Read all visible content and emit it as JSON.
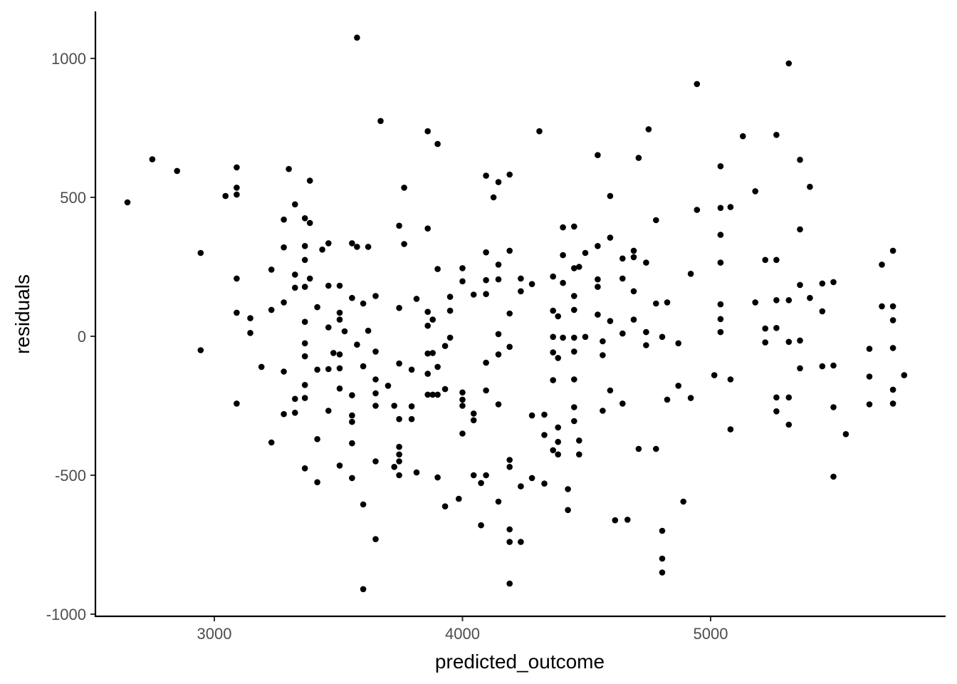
{
  "chart_data": {
    "type": "scatter",
    "title": "",
    "xlabel": "predicted_outcome",
    "ylabel": "residuals",
    "xlim": [
      2520,
      5850
    ],
    "ylim": [
      -1010,
      1170
    ],
    "x_ticks": [
      3000,
      4000,
      5000
    ],
    "x_tick_labels": [
      "3000",
      "4000",
      "5000"
    ],
    "y_ticks": [
      1000,
      500,
      0,
      -500,
      -1000
    ],
    "y_tick_labels": [
      "1000",
      "500",
      "0",
      "-500",
      "-1000"
    ],
    "grid": false,
    "point_color": "#000000",
    "points": [
      [
        2650,
        482
      ],
      [
        2750,
        637
      ],
      [
        2850,
        595
      ],
      [
        2945,
        300
      ],
      [
        2945,
        -50
      ],
      [
        3045,
        505
      ],
      [
        3090,
        608
      ],
      [
        3090,
        535
      ],
      [
        3090,
        510
      ],
      [
        3090,
        208
      ],
      [
        3090,
        85
      ],
      [
        3090,
        -242
      ],
      [
        3145,
        65
      ],
      [
        3145,
        12
      ],
      [
        3190,
        -110
      ],
      [
        3230,
        240
      ],
      [
        3230,
        95
      ],
      [
        3230,
        -382
      ],
      [
        3280,
        420
      ],
      [
        3280,
        320
      ],
      [
        3280,
        122
      ],
      [
        3280,
        -127
      ],
      [
        3280,
        -280
      ],
      [
        3300,
        602
      ],
      [
        3325,
        475
      ],
      [
        3325,
        222
      ],
      [
        3325,
        175
      ],
      [
        3325,
        -225
      ],
      [
        3325,
        -275
      ],
      [
        3365,
        425
      ],
      [
        3365,
        325
      ],
      [
        3365,
        275
      ],
      [
        3365,
        178
      ],
      [
        3365,
        52
      ],
      [
        3365,
        -25
      ],
      [
        3365,
        -72
      ],
      [
        3365,
        -175
      ],
      [
        3365,
        -222
      ],
      [
        3365,
        -475
      ],
      [
        3385,
        408
      ],
      [
        3385,
        560
      ],
      [
        3385,
        208
      ],
      [
        3415,
        105
      ],
      [
        3415,
        -120
      ],
      [
        3415,
        -370
      ],
      [
        3415,
        -525
      ],
      [
        3435,
        312
      ],
      [
        3460,
        335
      ],
      [
        3460,
        182
      ],
      [
        3460,
        32
      ],
      [
        3460,
        -118
      ],
      [
        3460,
        -268
      ],
      [
        3480,
        -60
      ],
      [
        3505,
        182
      ],
      [
        3505,
        85
      ],
      [
        3505,
        60
      ],
      [
        3505,
        -65
      ],
      [
        3505,
        -115
      ],
      [
        3505,
        -188
      ],
      [
        3505,
        -465
      ],
      [
        3525,
        18
      ],
      [
        3555,
        335
      ],
      [
        3555,
        138
      ],
      [
        3555,
        -212
      ],
      [
        3555,
        -285
      ],
      [
        3555,
        -308
      ],
      [
        3555,
        -385
      ],
      [
        3555,
        -510
      ],
      [
        3575,
        1075
      ],
      [
        3575,
        322
      ],
      [
        3575,
        -30
      ],
      [
        3600,
        118
      ],
      [
        3600,
        -108
      ],
      [
        3600,
        -605
      ],
      [
        3600,
        -910
      ],
      [
        3620,
        322
      ],
      [
        3620,
        20
      ],
      [
        3650,
        145
      ],
      [
        3650,
        -55
      ],
      [
        3650,
        -155
      ],
      [
        3650,
        -205
      ],
      [
        3650,
        -250
      ],
      [
        3650,
        -450
      ],
      [
        3650,
        -730
      ],
      [
        3670,
        775
      ],
      [
        3700,
        -178
      ],
      [
        3725,
        -250
      ],
      [
        3725,
        -470
      ],
      [
        3745,
        398
      ],
      [
        3745,
        102
      ],
      [
        3745,
        -98
      ],
      [
        3745,
        -298
      ],
      [
        3745,
        -398
      ],
      [
        3745,
        -425
      ],
      [
        3745,
        -450
      ],
      [
        3745,
        -500
      ],
      [
        3765,
        535
      ],
      [
        3765,
        332
      ],
      [
        3795,
        -120
      ],
      [
        3795,
        -252
      ],
      [
        3795,
        -298
      ],
      [
        3815,
        135
      ],
      [
        3815,
        -490
      ],
      [
        3860,
        738
      ],
      [
        3860,
        388
      ],
      [
        3860,
        88
      ],
      [
        3860,
        38
      ],
      [
        3860,
        -62
      ],
      [
        3860,
        -135
      ],
      [
        3860,
        -210
      ],
      [
        3880,
        60
      ],
      [
        3880,
        -60
      ],
      [
        3880,
        -210
      ],
      [
        3900,
        692
      ],
      [
        3900,
        242
      ],
      [
        3900,
        -110
      ],
      [
        3900,
        -210
      ],
      [
        3900,
        -508
      ],
      [
        3930,
        -35
      ],
      [
        3930,
        -190
      ],
      [
        3930,
        -612
      ],
      [
        3950,
        142
      ],
      [
        3950,
        92
      ],
      [
        3950,
        -5
      ],
      [
        3985,
        -585
      ],
      [
        4000,
        245
      ],
      [
        4000,
        198
      ],
      [
        4000,
        -202
      ],
      [
        4000,
        -228
      ],
      [
        4000,
        -250
      ],
      [
        4000,
        -350
      ],
      [
        4045,
        150
      ],
      [
        4045,
        -278
      ],
      [
        4045,
        -302
      ],
      [
        4045,
        -500
      ],
      [
        4075,
        -528
      ],
      [
        4075,
        -680
      ],
      [
        4095,
        578
      ],
      [
        4095,
        302
      ],
      [
        4095,
        202
      ],
      [
        4095,
        152
      ],
      [
        4095,
        -95
      ],
      [
        4095,
        -195
      ],
      [
        4095,
        -500
      ],
      [
        4125,
        500
      ],
      [
        4145,
        555
      ],
      [
        4145,
        258
      ],
      [
        4145,
        205
      ],
      [
        4145,
        8
      ],
      [
        4145,
        -65
      ],
      [
        4145,
        -245
      ],
      [
        4145,
        -595
      ],
      [
        4190,
        582
      ],
      [
        4190,
        308
      ],
      [
        4190,
        82
      ],
      [
        4190,
        -38
      ],
      [
        4190,
        -445
      ],
      [
        4190,
        -470
      ],
      [
        4190,
        -695
      ],
      [
        4190,
        -740
      ],
      [
        4190,
        -890
      ],
      [
        4235,
        208
      ],
      [
        4235,
        162
      ],
      [
        4235,
        -540
      ],
      [
        4235,
        -740
      ],
      [
        4280,
        188
      ],
      [
        4280,
        -285
      ],
      [
        4280,
        -510
      ],
      [
        4310,
        738
      ],
      [
        4330,
        -282
      ],
      [
        4330,
        -355
      ],
      [
        4330,
        -530
      ],
      [
        4365,
        215
      ],
      [
        4365,
        92
      ],
      [
        4365,
        -58
      ],
      [
        4365,
        -158
      ],
      [
        4365,
        -410
      ],
      [
        4365,
        -2
      ],
      [
        4385,
        72
      ],
      [
        4385,
        -78
      ],
      [
        4385,
        -380
      ],
      [
        4385,
        -425
      ],
      [
        4385,
        -328
      ],
      [
        4405,
        392
      ],
      [
        4405,
        292
      ],
      [
        4405,
        192
      ],
      [
        4405,
        -5
      ],
      [
        4425,
        -550
      ],
      [
        4425,
        -625
      ],
      [
        4450,
        395
      ],
      [
        4450,
        245
      ],
      [
        4450,
        145
      ],
      [
        4450,
        95
      ],
      [
        4450,
        -5
      ],
      [
        4450,
        -55
      ],
      [
        4450,
        -155
      ],
      [
        4450,
        -255
      ],
      [
        4450,
        -305
      ],
      [
        4470,
        250
      ],
      [
        4470,
        -375
      ],
      [
        4470,
        -425
      ],
      [
        4495,
        300
      ],
      [
        4495,
        -2
      ],
      [
        4545,
        652
      ],
      [
        4545,
        325
      ],
      [
        4545,
        205
      ],
      [
        4545,
        178
      ],
      [
        4545,
        78
      ],
      [
        4565,
        -18
      ],
      [
        4565,
        -68
      ],
      [
        4565,
        -268
      ],
      [
        4595,
        505
      ],
      [
        4595,
        355
      ],
      [
        4595,
        55
      ],
      [
        4595,
        -195
      ],
      [
        4615,
        -662
      ],
      [
        4645,
        280
      ],
      [
        4645,
        208
      ],
      [
        4645,
        10
      ],
      [
        4645,
        -242
      ],
      [
        4665,
        -660
      ],
      [
        4690,
        308
      ],
      [
        4690,
        285
      ],
      [
        4690,
        162
      ],
      [
        4690,
        60
      ],
      [
        4710,
        642
      ],
      [
        4710,
        -405
      ],
      [
        4740,
        265
      ],
      [
        4740,
        15
      ],
      [
        4740,
        -32
      ],
      [
        4750,
        745
      ],
      [
        4780,
        418
      ],
      [
        4780,
        118
      ],
      [
        4780,
        -405
      ],
      [
        4805,
        -2
      ],
      [
        4805,
        -700
      ],
      [
        4805,
        -800
      ],
      [
        4805,
        -850
      ],
      [
        4825,
        122
      ],
      [
        4825,
        -228
      ],
      [
        4870,
        -25
      ],
      [
        4870,
        -178
      ],
      [
        4890,
        -595
      ],
      [
        4920,
        225
      ],
      [
        4920,
        -222
      ],
      [
        4945,
        908
      ],
      [
        4945,
        455
      ],
      [
        5015,
        -140
      ],
      [
        5040,
        612
      ],
      [
        5040,
        462
      ],
      [
        5040,
        365
      ],
      [
        5040,
        265
      ],
      [
        5040,
        115
      ],
      [
        5040,
        62
      ],
      [
        5040,
        15
      ],
      [
        5080,
        465
      ],
      [
        5080,
        -155
      ],
      [
        5080,
        -335
      ],
      [
        5130,
        720
      ],
      [
        5180,
        522
      ],
      [
        5180,
        122
      ],
      [
        5220,
        275
      ],
      [
        5220,
        28
      ],
      [
        5220,
        -22
      ],
      [
        5265,
        725
      ],
      [
        5265,
        275
      ],
      [
        5265,
        130
      ],
      [
        5265,
        30
      ],
      [
        5265,
        -220
      ],
      [
        5265,
        -270
      ],
      [
        5315,
        982
      ],
      [
        5315,
        130
      ],
      [
        5315,
        -20
      ],
      [
        5315,
        -220
      ],
      [
        5315,
        -318
      ],
      [
        5360,
        635
      ],
      [
        5360,
        385
      ],
      [
        5360,
        185
      ],
      [
        5360,
        -15
      ],
      [
        5360,
        -115
      ],
      [
        5400,
        538
      ],
      [
        5400,
        138
      ],
      [
        5450,
        190
      ],
      [
        5450,
        90
      ],
      [
        5450,
        -108
      ],
      [
        5495,
        195
      ],
      [
        5495,
        -105
      ],
      [
        5495,
        -255
      ],
      [
        5495,
        -505
      ],
      [
        5545,
        -352
      ],
      [
        5640,
        -45
      ],
      [
        5640,
        -145
      ],
      [
        5640,
        -245
      ],
      [
        5690,
        258
      ],
      [
        5690,
        108
      ],
      [
        5735,
        308
      ],
      [
        5735,
        108
      ],
      [
        5735,
        58
      ],
      [
        5735,
        -42
      ],
      [
        5735,
        -192
      ],
      [
        5735,
        -242
      ],
      [
        5780,
        -140
      ]
    ]
  }
}
